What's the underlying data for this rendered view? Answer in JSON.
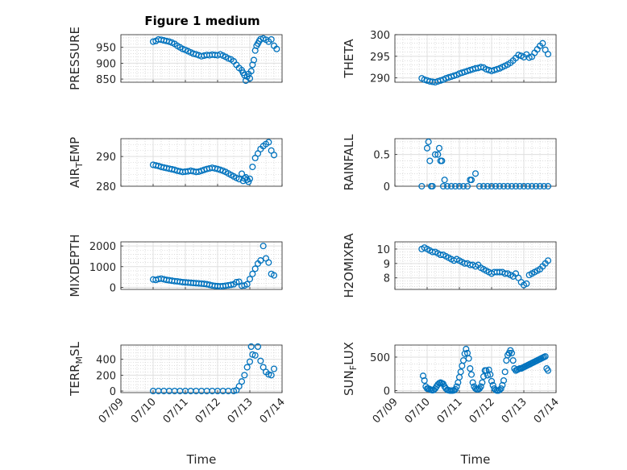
{
  "figure": {
    "title": "Figure 1 medium",
    "marker_color": "#0072bd"
  },
  "x_ticks": [
    "07/09",
    "07/10",
    "07/11",
    "07/12",
    "07/13",
    "07/14"
  ],
  "chart_data": [
    {
      "type": "scatter",
      "name": "PRESSURE",
      "ylabel": "PRESSURE",
      "ylim": [
        840,
        990
      ],
      "yticks": [
        "850",
        "900",
        "950"
      ],
      "xlabel": "",
      "grid": true,
      "x": [
        "07/10 00:00",
        "07/10 02:00",
        "07/10 04:00",
        "07/10 06:00",
        "07/10 08:00",
        "07/10 10:00",
        "07/10 12:00",
        "07/10 14:00",
        "07/10 16:00",
        "07/10 18:00",
        "07/10 20:00",
        "07/10 22:00",
        "07/11 00:00",
        "07/11 02:00",
        "07/11 04:00",
        "07/11 06:00",
        "07/11 08:00",
        "07/11 10:00",
        "07/11 12:00",
        "07/11 14:00",
        "07/11 16:00",
        "07/11 18:00",
        "07/11 20:00",
        "07/11 22:00",
        "07/12 00:00",
        "07/12 02:00",
        "07/12 04:00",
        "07/12 06:00",
        "07/12 08:00",
        "07/12 10:00",
        "07/12 12:00",
        "07/12 14:00",
        "07/12 16:00",
        "07/12 18:00",
        "07/12 19:00",
        "07/12 20:00",
        "07/12 21:00",
        "07/12 22:00",
        "07/12 23:00",
        "07/13 00:00",
        "07/13 01:00",
        "07/13 02:00",
        "07/13 03:00",
        "07/13 04:00",
        "07/13 05:00",
        "07/13 06:00",
        "07/13 07:00",
        "07/13 08:00",
        "07/13 10:00",
        "07/13 12:00",
        "07/13 14:00",
        "07/13 16:00",
        "07/13 18:00",
        "07/13 20:00"
      ],
      "y": [
        968,
        970,
        975,
        974,
        972,
        970,
        968,
        965,
        961,
        955,
        950,
        945,
        942,
        938,
        934,
        930,
        928,
        925,
        922,
        924,
        926,
        925,
        927,
        926,
        925,
        928,
        924,
        920,
        915,
        912,
        906,
        895,
        885,
        878,
        870,
        862,
        845,
        858,
        866,
        852,
        875,
        895,
        910,
        940,
        955,
        962,
        970,
        976,
        978,
        974,
        968,
        975,
        955,
        945
      ]
    },
    {
      "type": "scatter",
      "name": "THETA",
      "ylabel": "THETA",
      "ylim": [
        289,
        300
      ],
      "yticks": [
        "290",
        "295",
        "300"
      ],
      "xlabel": "",
      "grid": true,
      "x": [
        "07/09 20:00",
        "07/09 22:00",
        "07/10 00:00",
        "07/10 02:00",
        "07/10 04:00",
        "07/10 06:00",
        "07/10 08:00",
        "07/10 10:00",
        "07/10 12:00",
        "07/10 14:00",
        "07/10 16:00",
        "07/10 18:00",
        "07/10 20:00",
        "07/10 22:00",
        "07/11 00:00",
        "07/11 02:00",
        "07/11 04:00",
        "07/11 06:00",
        "07/11 08:00",
        "07/11 10:00",
        "07/11 12:00",
        "07/11 14:00",
        "07/11 16:00",
        "07/11 18:00",
        "07/11 20:00",
        "07/11 22:00",
        "07/12 00:00",
        "07/12 02:00",
        "07/12 04:00",
        "07/12 06:00",
        "07/12 08:00",
        "07/12 10:00",
        "07/12 12:00",
        "07/12 14:00",
        "07/12 16:00",
        "07/12 18:00",
        "07/12 20:00",
        "07/12 22:00",
        "07/13 00:00",
        "07/13 02:00",
        "07/13 04:00",
        "07/13 06:00",
        "07/13 08:00",
        "07/13 10:00",
        "07/13 12:00",
        "07/13 14:00",
        "07/13 16:00",
        "07/13 18:00"
      ],
      "y": [
        289.9,
        289.6,
        289.4,
        289.2,
        289.1,
        289.0,
        289.2,
        289.4,
        289.6,
        289.9,
        290.1,
        290.3,
        290.5,
        290.7,
        291.0,
        291.2,
        291.4,
        291.6,
        291.8,
        292.0,
        292.2,
        292.3,
        292.5,
        292.4,
        292.0,
        291.8,
        291.6,
        291.8,
        292.0,
        292.2,
        292.5,
        292.8,
        293.1,
        293.5,
        294.0,
        294.6,
        295.3,
        295.1,
        294.8,
        295.4,
        294.7,
        294.9,
        295.8,
        296.6,
        297.4,
        298.0,
        296.5,
        295.5
      ]
    },
    {
      "type": "scatter",
      "name": "AIR_TEMP",
      "ylabel": "AIR_TEMP",
      "ylim": [
        280,
        296
      ],
      "yticks": [
        "280",
        "290"
      ],
      "xlabel": "",
      "grid": true,
      "x": [
        "07/10 00:00",
        "07/10 02:00",
        "07/10 04:00",
        "07/10 06:00",
        "07/10 08:00",
        "07/10 10:00",
        "07/10 12:00",
        "07/10 14:00",
        "07/10 16:00",
        "07/10 18:00",
        "07/10 20:00",
        "07/10 22:00",
        "07/11 00:00",
        "07/11 02:00",
        "07/11 04:00",
        "07/11 06:00",
        "07/11 08:00",
        "07/11 10:00",
        "07/11 12:00",
        "07/11 14:00",
        "07/11 16:00",
        "07/11 18:00",
        "07/11 20:00",
        "07/11 22:00",
        "07/12 00:00",
        "07/12 02:00",
        "07/12 04:00",
        "07/12 06:00",
        "07/12 08:00",
        "07/12 10:00",
        "07/12 12:00",
        "07/12 14:00",
        "07/12 16:00",
        "07/12 18:00",
        "07/12 19:00",
        "07/12 20:00",
        "07/12 21:00",
        "07/12 22:00",
        "07/12 23:00",
        "07/13 00:00",
        "07/13 02:00",
        "07/13 04:00",
        "07/13 06:00",
        "07/13 08:00",
        "07/13 10:00",
        "07/13 12:00",
        "07/13 14:00",
        "07/13 16:00",
        "07/13 18:00"
      ],
      "y": [
        287.2,
        287.0,
        286.8,
        286.5,
        286.3,
        286.1,
        285.9,
        285.7,
        285.5,
        285.2,
        285.0,
        284.8,
        284.9,
        285.0,
        285.2,
        285.0,
        284.8,
        284.9,
        285.2,
        285.5,
        285.8,
        286.0,
        286.2,
        286.0,
        285.8,
        285.5,
        285.2,
        284.8,
        284.3,
        283.8,
        283.3,
        282.8,
        282.4,
        284.2,
        281.8,
        282.6,
        283.0,
        282.2,
        281.5,
        282.5,
        286.5,
        289.5,
        291.0,
        292.5,
        293.5,
        294.2,
        294.8,
        292.0,
        290.5
      ]
    },
    {
      "type": "scatter",
      "name": "RAINFALL",
      "ylabel": "RAINFALL",
      "ylim": [
        0,
        0.75
      ],
      "yticks": [
        "0",
        "0.5"
      ],
      "xlabel": "",
      "grid": true,
      "x": [
        "07/09 20:00",
        "07/10 00:00",
        "07/10 01:00",
        "07/10 02:00",
        "07/10 03:00",
        "07/10 04:00",
        "07/10 06:00",
        "07/10 08:00",
        "07/10 09:00",
        "07/10 10:00",
        "07/10 11:00",
        "07/10 12:00",
        "07/10 13:00",
        "07/10 15:00",
        "07/10 18:00",
        "07/10 21:00",
        "07/11 00:00",
        "07/11 03:00",
        "07/11 06:00",
        "07/11 08:00",
        "07/11 09:00",
        "07/11 12:00",
        "07/11 15:00",
        "07/11 18:00",
        "07/11 21:00",
        "07/12 00:00",
        "07/12 03:00",
        "07/12 06:00",
        "07/12 09:00",
        "07/12 12:00",
        "07/12 15:00",
        "07/12 18:00",
        "07/12 21:00",
        "07/13 00:00",
        "07/13 03:00",
        "07/13 06:00",
        "07/13 09:00",
        "07/13 12:00",
        "07/13 15:00",
        "07/13 18:00"
      ],
      "y": [
        0,
        0.6,
        0.7,
        0.4,
        0.0,
        0,
        0.5,
        0.5,
        0.6,
        0.4,
        0.4,
        0,
        0.1,
        0,
        0,
        0,
        0,
        0,
        0,
        0.1,
        0.1,
        0.2,
        0,
        0,
        0,
        0,
        0,
        0,
        0,
        0,
        0,
        0,
        0,
        0,
        0,
        0,
        0,
        0,
        0,
        0
      ]
    },
    {
      "type": "scatter",
      "name": "MIXDEPTH",
      "ylabel": "MIXDEPTH",
      "ylim": [
        -100,
        2200
      ],
      "yticks": [
        "0",
        "1000",
        "2000"
      ],
      "xlabel": "",
      "grid": true,
      "x": [
        "07/10 00:00",
        "07/10 02:00",
        "07/10 04:00",
        "07/10 06:00",
        "07/10 08:00",
        "07/10 10:00",
        "07/10 12:00",
        "07/10 14:00",
        "07/10 16:00",
        "07/10 18:00",
        "07/10 20:00",
        "07/10 22:00",
        "07/11 00:00",
        "07/11 02:00",
        "07/11 04:00",
        "07/11 06:00",
        "07/11 08:00",
        "07/11 10:00",
        "07/11 12:00",
        "07/11 14:00",
        "07/11 16:00",
        "07/11 18:00",
        "07/11 20:00",
        "07/11 22:00",
        "07/12 00:00",
        "07/12 02:00",
        "07/12 04:00",
        "07/12 06:00",
        "07/12 08:00",
        "07/12 10:00",
        "07/12 12:00",
        "07/12 14:00",
        "07/12 16:00",
        "07/12 18:00",
        "07/12 20:00",
        "07/12 22:00",
        "07/13 00:00",
        "07/13 02:00",
        "07/13 04:00",
        "07/13 06:00",
        "07/13 08:00",
        "07/13 10:00",
        "07/13 12:00",
        "07/13 14:00",
        "07/13 16:00",
        "07/13 18:00"
      ],
      "y": [
        380,
        360,
        400,
        420,
        390,
        360,
        340,
        320,
        300,
        290,
        270,
        250,
        240,
        230,
        220,
        210,
        200,
        190,
        180,
        170,
        150,
        120,
        90,
        70,
        60,
        50,
        60,
        80,
        100,
        120,
        150,
        250,
        270,
        80,
        90,
        150,
        400,
        650,
        900,
        1150,
        1300,
        2000,
        1400,
        1200,
        650,
        580
      ]
    },
    {
      "type": "scatter",
      "name": "H2OMIXRA",
      "ylabel": "H2OMIXRA",
      "ylim": [
        7.2,
        10.5
      ],
      "yticks": [
        "8",
        "9",
        "10"
      ],
      "xlabel": "",
      "grid": true,
      "x": [
        "07/09 20:00",
        "07/09 22:00",
        "07/10 00:00",
        "07/10 02:00",
        "07/10 04:00",
        "07/10 06:00",
        "07/10 08:00",
        "07/10 10:00",
        "07/10 12:00",
        "07/10 14:00",
        "07/10 16:00",
        "07/10 18:00",
        "07/10 20:00",
        "07/10 22:00",
        "07/11 00:00",
        "07/11 02:00",
        "07/11 04:00",
        "07/11 06:00",
        "07/11 08:00",
        "07/11 10:00",
        "07/11 12:00",
        "07/11 14:00",
        "07/11 16:00",
        "07/11 18:00",
        "07/11 20:00",
        "07/11 22:00",
        "07/12 00:00",
        "07/12 02:00",
        "07/12 04:00",
        "07/12 06:00",
        "07/12 08:00",
        "07/12 10:00",
        "07/12 12:00",
        "07/12 14:00",
        "07/12 16:00",
        "07/12 18:00",
        "07/12 20:00",
        "07/12 22:00",
        "07/13 00:00",
        "07/13 02:00",
        "07/13 04:00",
        "07/13 06:00",
        "07/13 08:00",
        "07/13 10:00",
        "07/13 12:00",
        "07/13 14:00",
        "07/13 16:00",
        "07/13 18:00"
      ],
      "y": [
        10.0,
        10.1,
        10.0,
        9.9,
        9.8,
        9.8,
        9.7,
        9.6,
        9.6,
        9.5,
        9.4,
        9.3,
        9.2,
        9.3,
        9.2,
        9.1,
        9.0,
        9.0,
        8.9,
        8.9,
        8.8,
        8.9,
        8.7,
        8.6,
        8.5,
        8.4,
        8.3,
        8.4,
        8.4,
        8.4,
        8.4,
        8.3,
        8.3,
        8.2,
        8.1,
        8.3,
        8.0,
        7.7,
        7.5,
        7.6,
        8.2,
        8.3,
        8.4,
        8.5,
        8.6,
        8.8,
        9.0,
        9.2
      ]
    },
    {
      "type": "scatter",
      "name": "TERR_MSL",
      "ylabel": "TERR_MSL",
      "ylim": [
        -20,
        580
      ],
      "yticks": [
        "0",
        "200",
        "400"
      ],
      "xlabel": "Time",
      "grid": true,
      "x": [
        "07/10 00:00",
        "07/10 04:00",
        "07/10 08:00",
        "07/10 12:00",
        "07/10 16:00",
        "07/10 20:00",
        "07/11 00:00",
        "07/11 04:00",
        "07/11 08:00",
        "07/11 12:00",
        "07/11 16:00",
        "07/11 20:00",
        "07/12 00:00",
        "07/12 04:00",
        "07/12 08:00",
        "07/12 12:00",
        "07/12 14:00",
        "07/12 16:00",
        "07/12 18:00",
        "07/12 20:00",
        "07/12 22:00",
        "07/13 00:00",
        "07/13 01:00",
        "07/13 02:00",
        "07/13 04:00",
        "07/13 06:00",
        "07/13 08:00",
        "07/13 10:00",
        "07/13 12:00",
        "07/13 14:00",
        "07/13 16:00",
        "07/13 18:00"
      ],
      "y": [
        0,
        0,
        0,
        0,
        0,
        0,
        0,
        0,
        0,
        0,
        0,
        0,
        0,
        0,
        0,
        0,
        10,
        60,
        120,
        200,
        300,
        370,
        560,
        460,
        450,
        560,
        380,
        300,
        240,
        210,
        200,
        280
      ]
    },
    {
      "type": "scatter",
      "name": "SUN_FLUX",
      "ylabel": "SUN_FLUX",
      "ylim": [
        -30,
        680
      ],
      "yticks": [
        "0",
        "500"
      ],
      "xlabel": "Time",
      "grid": true,
      "x": [
        "07/09 21:00",
        "07/09 22:00",
        "07/09 23:00",
        "07/10 00:00",
        "07/10 01:00",
        "07/10 02:00",
        "07/10 03:00",
        "07/10 04:00",
        "07/10 05:00",
        "07/10 06:00",
        "07/10 07:00",
        "07/10 08:00",
        "07/10 09:00",
        "07/10 10:00",
        "07/10 11:00",
        "07/10 12:00",
        "07/10 13:00",
        "07/10 14:00",
        "07/10 15:00",
        "07/10 16:00",
        "07/10 17:00",
        "07/10 18:00",
        "07/10 19:00",
        "07/10 20:00",
        "07/10 21:00",
        "07/10 22:00",
        "07/10 23:00",
        "07/11 00:00",
        "07/11 01:00",
        "07/11 02:00",
        "07/11 03:00",
        "07/11 04:00",
        "07/11 05:00",
        "07/11 06:00",
        "07/11 07:00",
        "07/11 08:00",
        "07/11 09:00",
        "07/11 10:00",
        "07/11 11:00",
        "07/11 12:00",
        "07/11 13:00",
        "07/11 14:00",
        "07/11 15:00",
        "07/11 16:00",
        "07/11 17:00",
        "07/11 18:00",
        "07/11 19:00",
        "07/11 20:00",
        "07/11 21:00",
        "07/11 22:00",
        "07/11 23:00",
        "07/12 00:00",
        "07/12 01:00",
        "07/12 02:00",
        "07/12 03:00",
        "07/12 04:00",
        "07/12 05:00",
        "07/12 06:00",
        "07/12 07:00",
        "07/12 08:00",
        "07/12 09:00",
        "07/12 10:00",
        "07/12 11:00",
        "07/12 12:00",
        "07/12 13:00",
        "07/12 14:00",
        "07/12 15:00",
        "07/12 16:00",
        "07/12 17:00",
        "07/12 18:00",
        "07/12 19:00",
        "07/12 20:00",
        "07/12 21:00",
        "07/12 22:00",
        "07/12 23:00",
        "07/13 00:00",
        "07/13 01:00",
        "07/13 02:00",
        "07/13 03:00",
        "07/13 04:00",
        "07/13 05:00",
        "07/13 06:00",
        "07/13 07:00",
        "07/13 08:00",
        "07/13 09:00",
        "07/13 10:00",
        "07/13 11:00",
        "07/13 12:00",
        "07/13 13:00",
        "07/13 14:00",
        "07/13 15:00",
        "07/13 16:00",
        "07/13 17:00",
        "07/13 18:00"
      ],
      "y": [
        220,
        150,
        60,
        30,
        30,
        20,
        10,
        5,
        10,
        30,
        60,
        90,
        110,
        120,
        110,
        100,
        60,
        30,
        10,
        5,
        0,
        0,
        0,
        5,
        20,
        60,
        120,
        200,
        280,
        370,
        450,
        550,
        620,
        560,
        480,
        330,
        240,
        120,
        60,
        30,
        20,
        20,
        30,
        60,
        120,
        210,
        300,
        300,
        230,
        310,
        240,
        140,
        80,
        30,
        10,
        0,
        0,
        10,
        30,
        80,
        150,
        280,
        450,
        530,
        560,
        600,
        560,
        450,
        330,
        300,
        310,
        320,
        330,
        330,
        340,
        350,
        360,
        370,
        380,
        390,
        400,
        410,
        420,
        430,
        440,
        450,
        460,
        470,
        480,
        490,
        500,
        510,
        330,
        300
      ]
    }
  ]
}
